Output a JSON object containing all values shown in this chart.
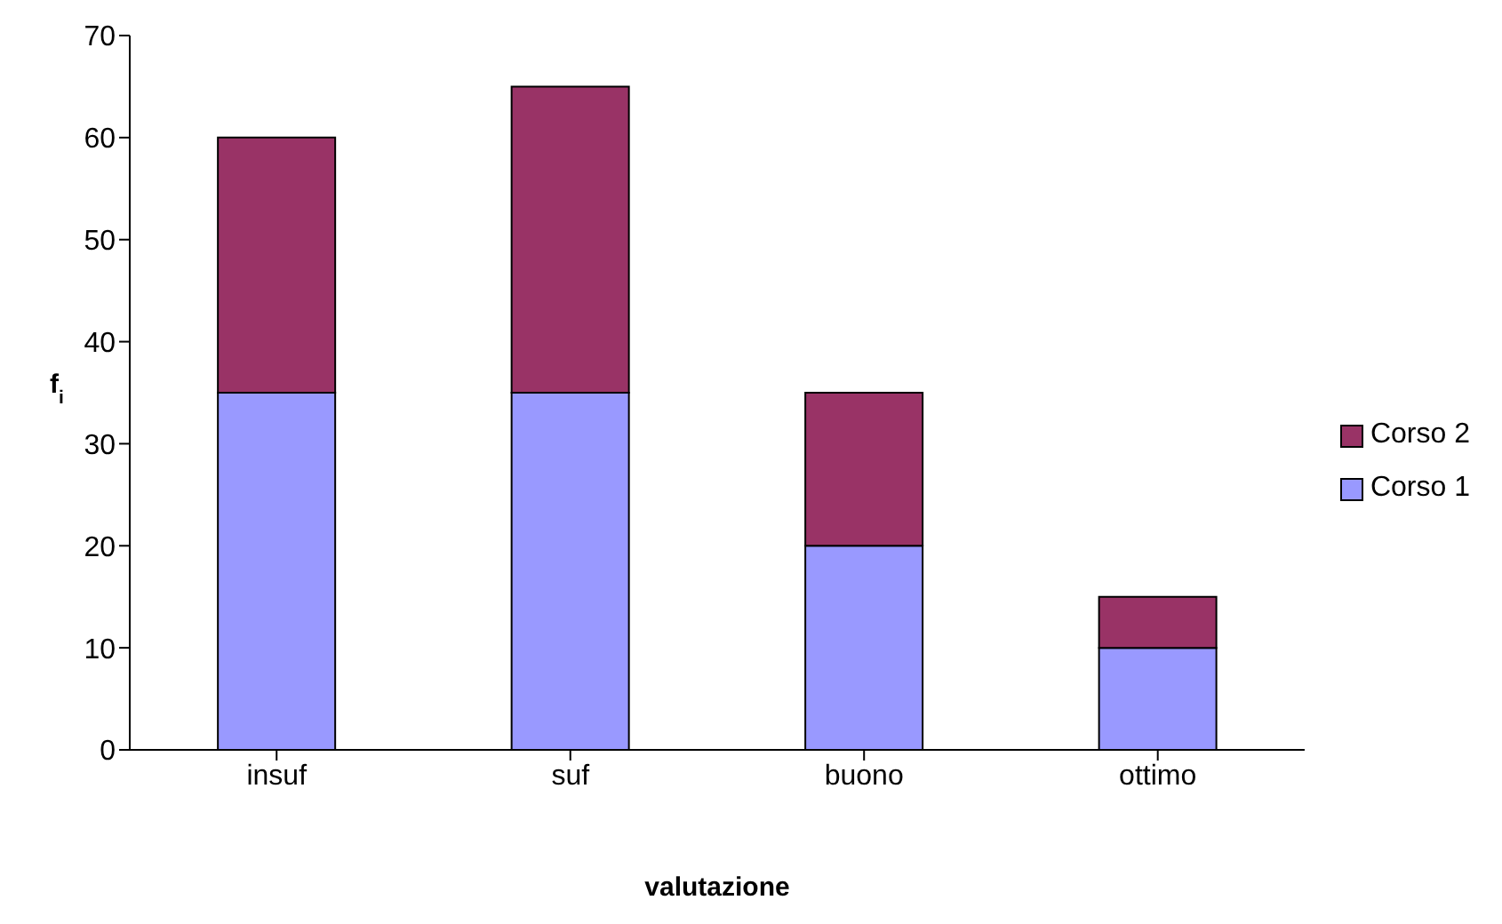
{
  "chart_data": {
    "type": "bar",
    "stacked": true,
    "xlabel": "valutazione",
    "ylabel": "f$_{i}$",
    "categories": [
      "insuf",
      "suf",
      "buono",
      "ottimo"
    ],
    "series": [
      {
        "name": "Corso 1",
        "color": "#9999ff",
        "values": [
          35,
          35,
          20,
          10
        ]
      },
      {
        "name": "Corso 2",
        "color": "#993366",
        "values": [
          25,
          30,
          15,
          5
        ]
      }
    ],
    "ylim": [
      0,
      70
    ],
    "yticks": [
      0,
      10,
      20,
      30,
      40,
      50,
      60,
      70
    ],
    "grid": false,
    "legend": "right"
  }
}
